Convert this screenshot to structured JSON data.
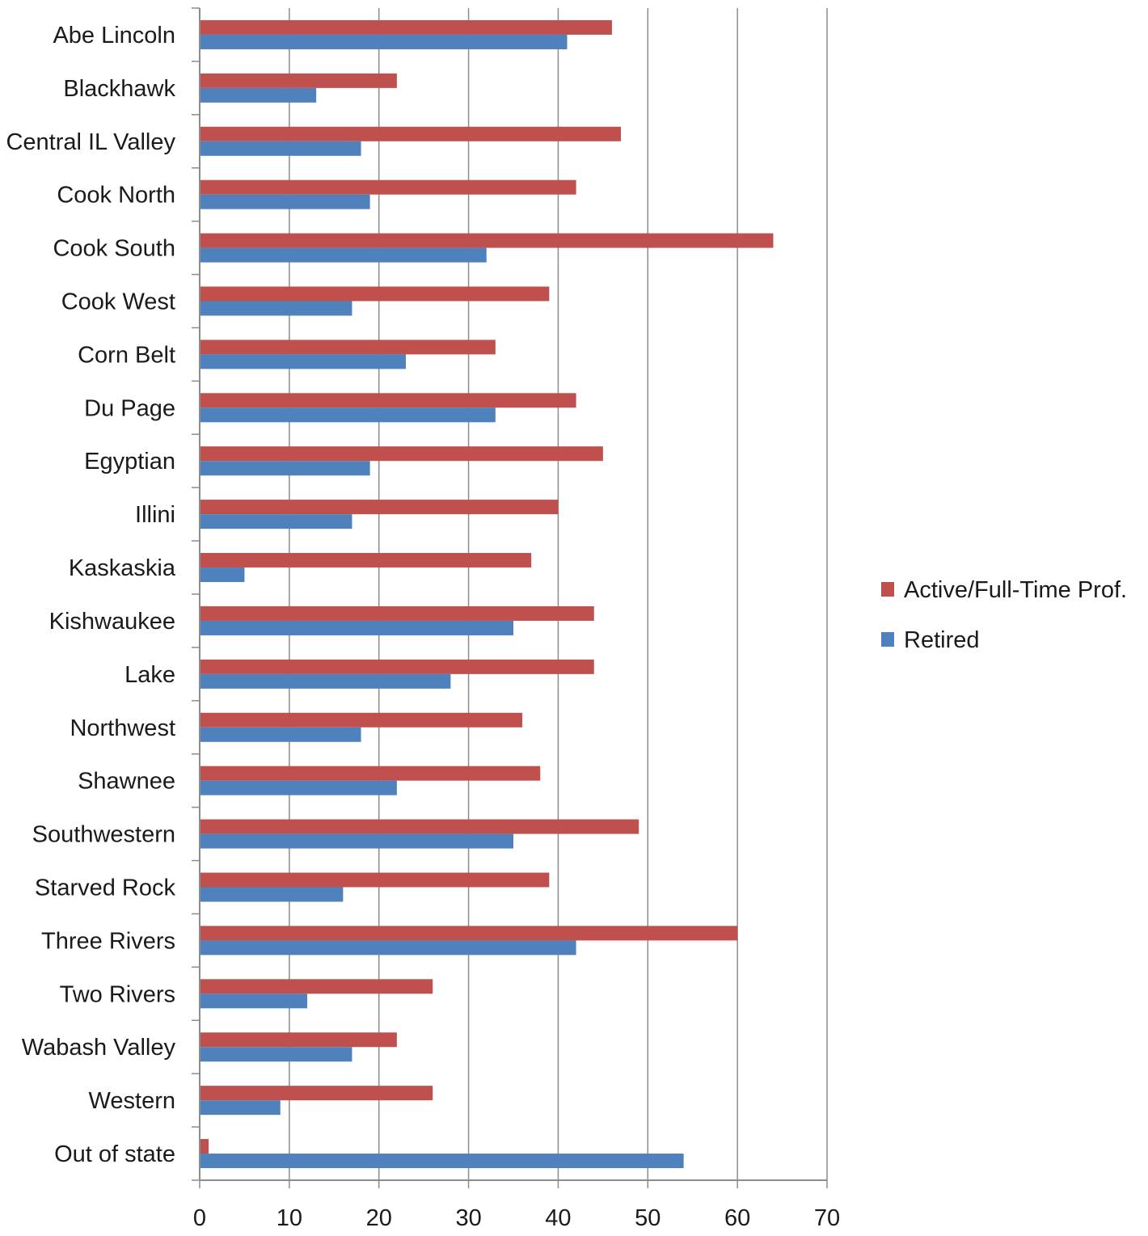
{
  "chart_data": {
    "type": "bar",
    "orientation": "horizontal",
    "categories": [
      "Abe Lincoln",
      "Blackhawk",
      "Central IL Valley",
      "Cook North",
      "Cook South",
      "Cook West",
      "Corn Belt",
      "Du Page",
      "Egyptian",
      "Illini",
      "Kaskaskia",
      "Kishwaukee",
      "Lake",
      "Northwest",
      "Shawnee",
      "Southwestern",
      "Starved Rock",
      "Three Rivers",
      "Two Rivers",
      "Wabash Valley",
      "Western",
      "Out of state"
    ],
    "series": [
      {
        "name": "Active/Full-Time Prof.",
        "color": "#c0504d",
        "values": [
          46,
          22,
          47,
          42,
          64,
          39,
          33,
          42,
          45,
          40,
          37,
          44,
          44,
          36,
          38,
          49,
          39,
          60,
          26,
          22,
          26,
          1
        ]
      },
      {
        "name": "Retired",
        "color": "#4f81bd",
        "values": [
          41,
          13,
          18,
          19,
          32,
          17,
          23,
          33,
          19,
          17,
          5,
          35,
          28,
          18,
          22,
          35,
          16,
          42,
          12,
          17,
          9,
          54
        ]
      }
    ],
    "xlim": [
      0,
      70
    ],
    "xticks": [
      "0",
      "10",
      "20",
      "30",
      "40",
      "50",
      "60",
      "70"
    ],
    "grid": "vertical",
    "legend": "right",
    "title": "",
    "xlabel": "",
    "ylabel": ""
  }
}
